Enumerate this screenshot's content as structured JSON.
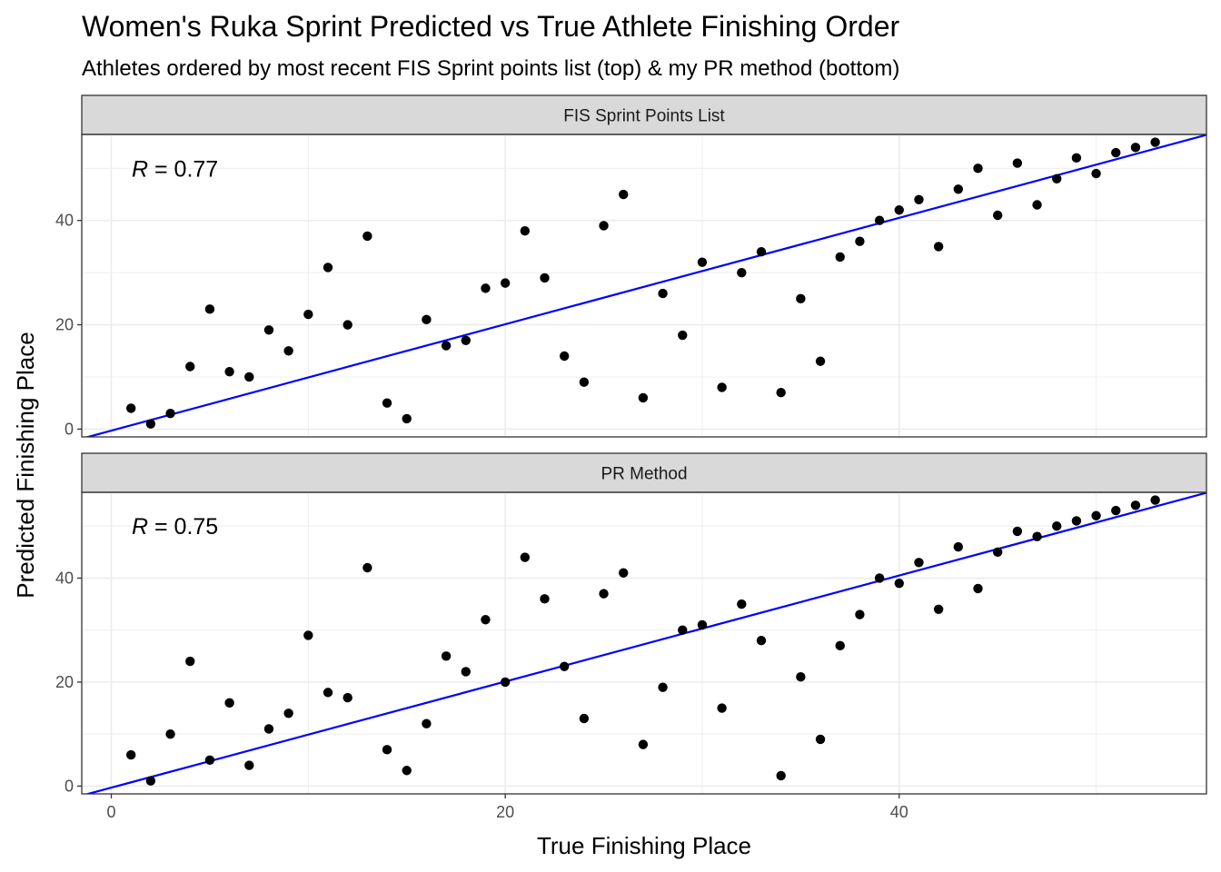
{
  "title": "Women's Ruka Sprint Predicted vs True Athlete Finishing Order",
  "subtitle": "Athletes ordered by most recent FIS Sprint points list (top) & my PR method (bottom)",
  "colors": {
    "points": "#000000",
    "fit_line": "#0000ff",
    "strip_fill": "#d9d9d9",
    "panel_border": "#333333",
    "grid": "#ebebeb"
  },
  "chart_data": {
    "type": "scatter",
    "title": "Women's Ruka Sprint Predicted vs True Athlete Finishing Order",
    "subtitle": "Athletes ordered by most recent FIS Sprint points list (top) & my PR method (bottom)",
    "xlabel": "True Finishing Place",
    "ylabel": "Predicted Finishing Place",
    "xlim": [
      -1.5,
      55.6
    ],
    "ylim": [
      -1.5,
      56.5
    ],
    "x_ticks": [
      0,
      20,
      40
    ],
    "y_ticks": [
      0,
      20,
      40
    ],
    "grid": true,
    "facets": [
      {
        "strip": "FIS Sprint Points List",
        "r_prefix": "R",
        "r_value": " = 0.77",
        "fit": {
          "intercept": -0.3,
          "slope": 1.02
        },
        "x": [
          1,
          2,
          3,
          4,
          5,
          6,
          7,
          8,
          9,
          10,
          11,
          12,
          13,
          14,
          15,
          16,
          17,
          18,
          19,
          20,
          21,
          22,
          23,
          24,
          25,
          26,
          27,
          28,
          29,
          30,
          31,
          32,
          33,
          34,
          35,
          36,
          37,
          38,
          39,
          40,
          41,
          42,
          43,
          44,
          45,
          46,
          47,
          48,
          49,
          50,
          51,
          52,
          53
        ],
        "y": [
          4,
          1,
          3,
          12,
          23,
          11,
          10,
          19,
          15,
          22,
          31,
          20,
          37,
          5,
          2,
          21,
          16,
          17,
          27,
          28,
          38,
          29,
          14,
          9,
          39,
          45,
          6,
          26,
          18,
          32,
          8,
          30,
          34,
          7,
          25,
          13,
          33,
          36,
          40,
          42,
          44,
          35,
          46,
          50,
          41,
          51,
          43,
          48,
          52,
          49,
          53,
          54,
          55
        ]
      },
      {
        "strip": "PR Method",
        "r_prefix": "R",
        "r_value": " = 0.75",
        "fit": {
          "intercept": -0.3,
          "slope": 1.02
        },
        "x": [
          1,
          2,
          3,
          4,
          5,
          6,
          7,
          8,
          9,
          10,
          11,
          12,
          13,
          14,
          15,
          16,
          17,
          18,
          19,
          20,
          21,
          22,
          23,
          24,
          25,
          26,
          27,
          28,
          29,
          30,
          31,
          32,
          33,
          34,
          35,
          36,
          37,
          38,
          39,
          40,
          41,
          42,
          43,
          44,
          45,
          46,
          47,
          48,
          49,
          50,
          51,
          52,
          53
        ],
        "y": [
          6,
          1,
          10,
          24,
          5,
          16,
          4,
          11,
          14,
          29,
          18,
          17,
          42,
          7,
          3,
          12,
          25,
          22,
          32,
          20,
          44,
          36,
          23,
          13,
          37,
          41,
          8,
          19,
          30,
          31,
          15,
          35,
          28,
          2,
          21,
          9,
          27,
          33,
          40,
          39,
          43,
          34,
          46,
          38,
          45,
          49,
          48,
          50,
          51,
          52,
          53,
          54,
          55
        ]
      }
    ]
  }
}
